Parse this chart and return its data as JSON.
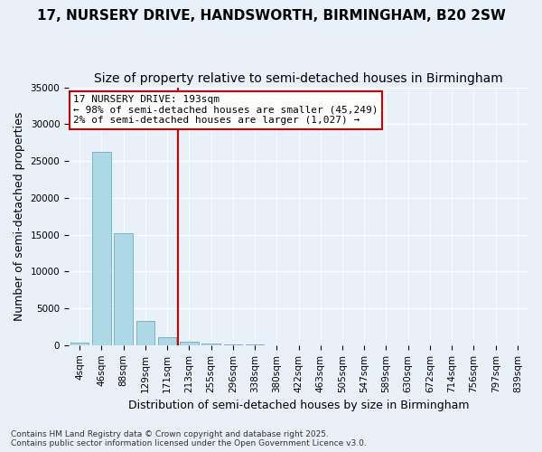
{
  "title_line1": "17, NURSERY DRIVE, HANDSWORTH, BIRMINGHAM, B20 2SW",
  "title_line2": "Size of property relative to semi-detached houses in Birmingham",
  "xlabel": "Distribution of semi-detached houses by size in Birmingham",
  "ylabel": "Number of semi-detached properties",
  "bins": [
    "4sqm",
    "46sqm",
    "88sqm",
    "129sqm",
    "171sqm",
    "213sqm",
    "255sqm",
    "296sqm",
    "338sqm",
    "380sqm",
    "422sqm",
    "463sqm",
    "505sqm",
    "547sqm",
    "589sqm",
    "630sqm",
    "672sqm",
    "714sqm",
    "756sqm",
    "797sqm",
    "839sqm"
  ],
  "bar_values": [
    400,
    26200,
    15200,
    3300,
    1100,
    500,
    200,
    100,
    50,
    20,
    10,
    5,
    3,
    2,
    1,
    1,
    0,
    0,
    0,
    0,
    0
  ],
  "bar_color": "#add8e6",
  "bar_edge_color": "#5a9fc0",
  "background_color": "#e8f0f8",
  "grid_color": "#ffffff",
  "vline_x_index": 4.5,
  "vline_color": "#cc0000",
  "annotation_text": "17 NURSERY DRIVE: 193sqm\n← 98% of semi-detached houses are smaller (45,249)\n2% of semi-detached houses are larger (1,027) →",
  "annotation_box_color": "#ffffff",
  "annotation_box_edge_color": "#cc0000",
  "ylim": [
    0,
    35000
  ],
  "yticks": [
    0,
    5000,
    10000,
    15000,
    20000,
    25000,
    30000,
    35000
  ],
  "footer_text": "Contains HM Land Registry data © Crown copyright and database right 2025.\nContains public sector information licensed under the Open Government Licence v3.0.",
  "title_fontsize": 11,
  "subtitle_fontsize": 10,
  "axis_label_fontsize": 9,
  "tick_fontsize": 7.5,
  "annotation_fontsize": 8
}
